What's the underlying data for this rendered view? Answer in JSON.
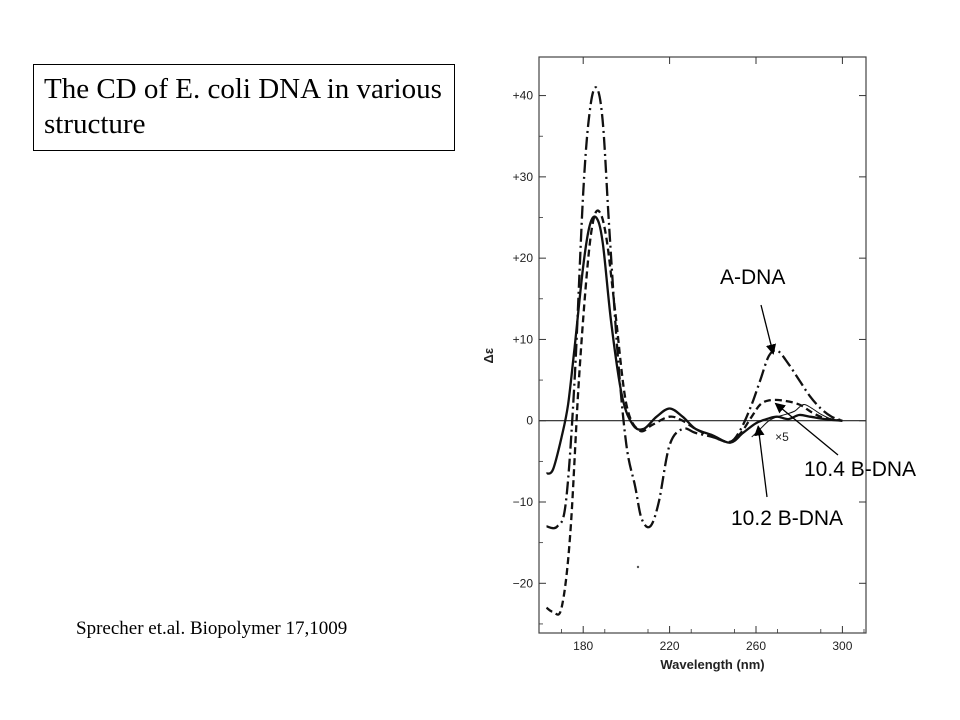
{
  "title": "The CD of E. coli DNA in various structure",
  "citation": "Sprecher et.al. Biopolymer 17,1009",
  "chart_data": {
    "type": "line",
    "xlabel": "Wavelength (nm)",
    "ylabel": "Δε",
    "xlim": [
      160,
      310
    ],
    "ylim": [
      -25.5,
      44.5
    ],
    "x_ticks": [
      180,
      220,
      260,
      300
    ],
    "y_ticks": [
      {
        "value": 40,
        "label": "+40"
      },
      {
        "value": 30,
        "label": "+30"
      },
      {
        "value": 20,
        "label": "+20"
      },
      {
        "value": 10,
        "label": "+10"
      },
      {
        "value": 0,
        "label": "0"
      },
      {
        "value": -10,
        "label": "−10"
      },
      {
        "value": -20,
        "label": "−20"
      }
    ],
    "zero_line": true,
    "grid": false,
    "annotations": [
      {
        "text": "A-DNA",
        "points_to": [
          268,
          8.6
        ]
      },
      {
        "text": "10.4 B-DNA",
        "points_to": [
          269,
          2.5
        ]
      },
      {
        "text": "10.2 B-DNA",
        "points_to": [
          261,
          -0.3
        ]
      },
      {
        "text": "×5",
        "at": [
          272,
          -2
        ]
      }
    ],
    "series": [
      {
        "name": "A-DNA",
        "style": "dashdot",
        "x": [
          163,
          168,
          172,
          176,
          180,
          183,
          186,
          189,
          192,
          196,
          200,
          204,
          207,
          211,
          215,
          220,
          226,
          232,
          240,
          248,
          253,
          258,
          262,
          266,
          270,
          275,
          280,
          285,
          290,
          295,
          300
        ],
        "y": [
          -13,
          -13,
          -10,
          5,
          28,
          38,
          41,
          37,
          24,
          8,
          -3,
          -8,
          -12,
          -13,
          -10,
          -3,
          -1,
          -1.5,
          -2,
          -2.6,
          -1,
          2,
          5,
          8,
          8.6,
          7,
          5,
          3,
          1.5,
          0.5,
          0
        ]
      },
      {
        "name": "10.4 B-DNA",
        "style": "dashed",
        "x": [
          163,
          166,
          170,
          174,
          178,
          182,
          185,
          188,
          191,
          195,
          200,
          206,
          212,
          220,
          226,
          232,
          240,
          248,
          253,
          258,
          262,
          266,
          272,
          280,
          286,
          292,
          300
        ],
        "y": [
          -23,
          -23.5,
          -23,
          -14,
          5,
          19,
          25,
          25.5,
          22,
          13,
          2,
          -1.2,
          -0.5,
          0.5,
          0,
          -1,
          -2,
          -2.6,
          -1.5,
          0.5,
          2,
          2.5,
          2.5,
          2,
          1,
          0.3,
          0
        ]
      },
      {
        "name": "10.2 B-DNA",
        "style": "solid",
        "x": [
          163,
          166,
          170,
          173,
          176,
          180,
          183,
          186,
          189,
          193,
          198,
          203,
          208,
          214,
          220,
          226,
          232,
          240,
          248,
          254,
          260,
          266,
          270,
          275,
          280,
          285,
          292,
          300
        ],
        "y": [
          -6.5,
          -6,
          -2,
          2,
          9,
          19,
          24,
          25,
          22,
          12,
          3,
          -0.5,
          -1,
          0.5,
          1.5,
          0.5,
          -1,
          -1.8,
          -2.7,
          -1.5,
          -0.3,
          0.3,
          0.5,
          0.2,
          0.7,
          0.5,
          0.2,
          0
        ]
      },
      {
        "name": "10.4 B-DNA x5",
        "style": "thin",
        "x": [
          258,
          262,
          266,
          270,
          274,
          278,
          282,
          286,
          290,
          294,
          298
        ],
        "y": [
          -2,
          -1,
          0,
          0.5,
          0.8,
          1.2,
          2,
          1.5,
          0.8,
          0.3,
          0
        ]
      }
    ]
  }
}
